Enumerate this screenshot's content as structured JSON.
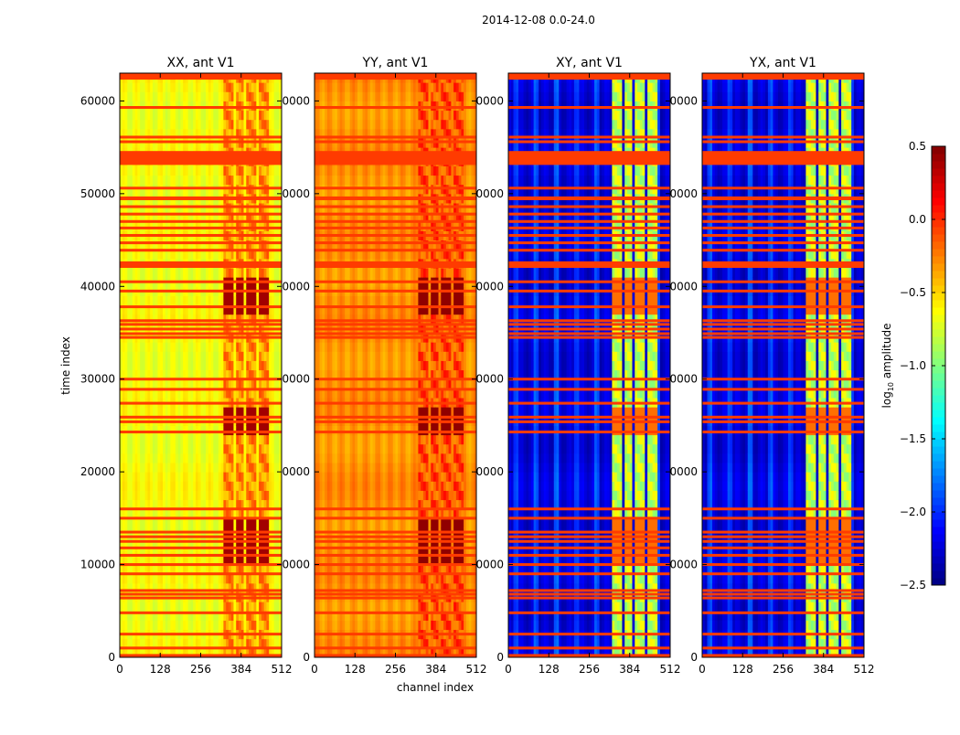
{
  "chart_data": {
    "type": "heatmap",
    "suptitle": "2014-12-08 0.0-24.0",
    "xlabel": "channel index",
    "ylabel": "time index",
    "xlim": [
      0,
      512
    ],
    "ylim": [
      0,
      63000
    ],
    "xticks": [
      0,
      128,
      256,
      384,
      512
    ],
    "xtick_labels": [
      "0",
      "128",
      "256",
      "384",
      "512"
    ],
    "yticks": [
      0,
      10000,
      20000,
      30000,
      40000,
      50000,
      60000
    ],
    "ytick_labels": [
      "0",
      "10000",
      "20000",
      "30000",
      "40000",
      "50000",
      "60000"
    ],
    "colorbar": {
      "label_prefix": "log",
      "label_sub": "10",
      "label_suffix": " amplitude",
      "range": [
        -2.5,
        0.5
      ],
      "colormap": "jet",
      "ticks": [
        0.5,
        0.0,
        -0.5,
        -1.0,
        -1.5,
        -2.0,
        -2.5
      ],
      "tick_labels": [
        "0.5",
        "0.0",
        "−0.5",
        "−1.0",
        "−1.5",
        "−2.0",
        "−2.5"
      ]
    },
    "bright_channel_bands": [
      [
        330,
        358
      ],
      [
        365,
        395
      ],
      [
        402,
        432
      ],
      [
        440,
        470
      ]
    ],
    "saturated_time_ranges": [
      [
        9500,
        15000
      ],
      [
        24000,
        27000
      ],
      [
        36500,
        40500
      ]
    ],
    "flagged_rows": [
      [
        62300,
        63000
      ],
      59300,
      56100,
      55600,
      [
        53100,
        54600
      ],
      50600,
      [
        49300,
        49700
      ],
      48600,
      47800,
      47000,
      46300,
      45500,
      44700,
      43900,
      [
        42000,
        42700
      ],
      40500,
      39500,
      37800,
      36300,
      35900,
      35400,
      34900,
      34500,
      30000,
      28900,
      27400,
      25900,
      25400,
      24300,
      16000,
      15000,
      13500,
      13000,
      12500,
      11800,
      11000,
      10000,
      9000,
      7200,
      6800,
      6400,
      4800,
      2500,
      1000,
      200
    ],
    "flag_level": -0.05,
    "panels": [
      {
        "title": "XX, ant V1",
        "base_level": -0.65,
        "band_level": -0.3,
        "saturated_level": 0.4
      },
      {
        "title": "YY, ant V1",
        "base_level": -0.3,
        "band_level": -0.1,
        "saturated_level": 0.45
      },
      {
        "title": "XY, ant V1",
        "base_level": -2.25,
        "band_level": -0.8,
        "saturated_level": -0.2
      },
      {
        "title": "YX, ant V1",
        "base_level": -2.25,
        "band_level": -0.8,
        "saturated_level": -0.2
      }
    ]
  }
}
